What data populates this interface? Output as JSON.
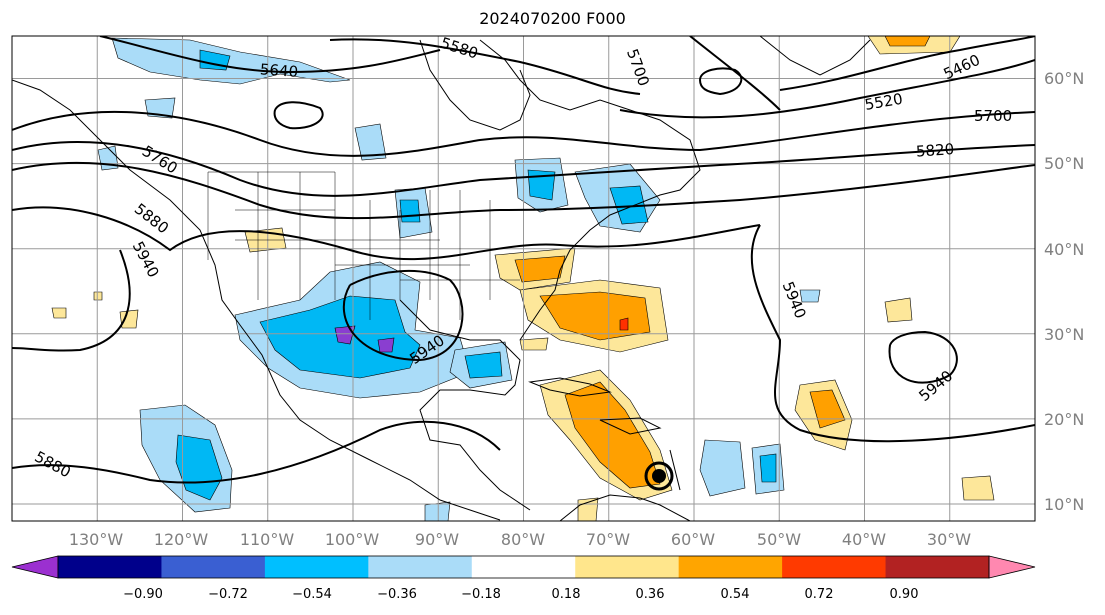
{
  "title": "2024070200 F000",
  "map": {
    "projection": "equirectangular",
    "extent": {
      "lon": [
        -140,
        -20
      ],
      "lat": [
        8,
        65
      ]
    },
    "lon_labels": [
      "130°W",
      "120°W",
      "110°W",
      "100°W",
      "90°W",
      "80°W",
      "70°W",
      "60°W",
      "50°W",
      "40°W",
      "30°W"
    ],
    "lat_labels": [
      "60°N",
      "50°N",
      "40°N",
      "30°N",
      "20°N",
      "10°N"
    ],
    "gridlines": true,
    "contour_labels": [
      "5640",
      "5580",
      "5700",
      "5460",
      "5520",
      "5700",
      "5820",
      "5760",
      "5880",
      "5940",
      "5940",
      "5940",
      "5940",
      "5880"
    ],
    "colors": {
      "fill_light_blue": "#aadcf8",
      "fill_blue": "#00b8f4",
      "fill_purple": "#8a3ed0",
      "fill_yellow": "#fde79a",
      "fill_orange": "#ffa000",
      "fill_red": "#ff3000",
      "contour": "#000000",
      "grid": "#9a9a9a"
    },
    "marker_icon": "tropical-cyclone-symbol"
  },
  "colorbar": {
    "ticks": [
      "−0.90",
      "−0.72",
      "−0.54",
      "−0.36",
      "−0.18",
      "0.18",
      "0.36",
      "0.54",
      "0.72",
      "0.90"
    ],
    "colors": [
      "#9b30d0",
      "#00008b",
      "#3a5fd2",
      "#00bfff",
      "#aadcf8",
      "#ffffff",
      "#ffe68c",
      "#ffa500",
      "#ff3a00",
      "#b22222",
      "#ff88b0"
    ]
  }
}
